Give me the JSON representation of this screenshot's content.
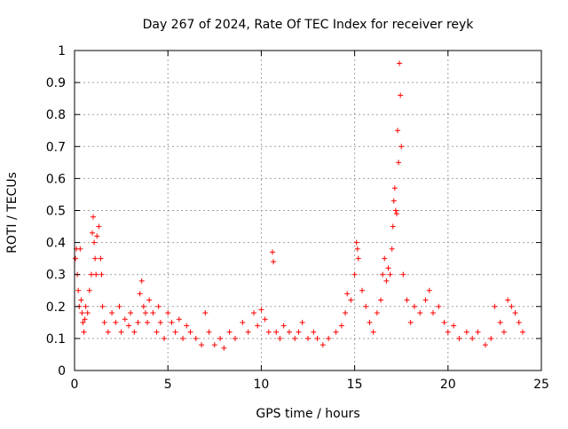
{
  "chart_data": {
    "type": "scatter",
    "title": "Day 267 of 2024, Rate Of TEC Index for receiver reyk",
    "xlabel": "GPS time / hours",
    "ylabel": "ROTI / TECUs",
    "xlim": [
      0,
      25
    ],
    "ylim": [
      0,
      1
    ],
    "xticks": [
      0,
      5,
      10,
      15,
      20,
      25
    ],
    "yticks": [
      0,
      0.1,
      0.2,
      0.3,
      0.4,
      0.5,
      0.6,
      0.7,
      0.8,
      0.9,
      1
    ],
    "grid": true,
    "legend": "none",
    "marker": "plus",
    "color": "#ff0000",
    "series": [
      {
        "x": [
          0.05,
          0.1,
          0.15,
          0.2,
          0.25,
          0.3,
          0.35,
          0.4,
          0.45,
          0.5,
          0.55,
          0.6,
          0.7,
          0.8,
          0.9,
          0.95,
          1.0,
          1.05,
          1.1,
          1.15,
          1.2,
          1.3,
          1.4,
          1.45,
          1.5,
          1.6,
          1.8,
          2.0,
          2.2,
          2.4,
          2.5,
          2.7,
          2.9,
          3.0,
          3.2,
          3.4,
          3.5,
          3.6,
          3.7,
          3.8,
          3.9,
          4.0,
          4.2,
          4.4,
          4.5,
          4.6,
          4.8,
          5.0,
          5.2,
          5.4,
          5.6,
          5.8,
          6.0,
          6.2,
          6.5,
          6.8,
          7.0,
          7.2,
          7.5,
          7.8,
          8.0,
          8.3,
          8.6,
          9.0,
          9.3,
          9.6,
          9.8,
          10.0,
          10.2,
          10.4,
          10.6,
          10.65,
          10.8,
          11.0,
          11.2,
          11.5,
          11.8,
          12.0,
          12.2,
          12.5,
          12.8,
          13.0,
          13.3,
          13.6,
          14.0,
          14.3,
          14.5,
          14.6,
          14.8,
          15.0,
          15.1,
          15.15,
          15.2,
          15.4,
          15.6,
          15.8,
          16.0,
          16.2,
          16.4,
          16.5,
          16.6,
          16.7,
          16.8,
          16.9,
          17.0,
          17.05,
          17.1,
          17.15,
          17.2,
          17.25,
          17.3,
          17.35,
          17.4,
          17.45,
          17.5,
          17.6,
          17.8,
          18.0,
          18.2,
          18.5,
          18.8,
          19.0,
          19.2,
          19.5,
          19.8,
          20.0,
          20.3,
          20.6,
          21.0,
          21.3,
          21.6,
          22.0,
          22.3,
          22.5,
          22.8,
          23.0,
          23.2,
          23.4,
          23.6,
          23.8,
          24.0
        ],
        "y": [
          0.35,
          0.38,
          0.3,
          0.25,
          0.2,
          0.38,
          0.22,
          0.18,
          0.15,
          0.12,
          0.16,
          0.2,
          0.18,
          0.25,
          0.3,
          0.43,
          0.48,
          0.4,
          0.35,
          0.3,
          0.42,
          0.45,
          0.35,
          0.3,
          0.2,
          0.15,
          0.12,
          0.18,
          0.15,
          0.2,
          0.12,
          0.16,
          0.14,
          0.18,
          0.12,
          0.15,
          0.24,
          0.28,
          0.2,
          0.18,
          0.15,
          0.22,
          0.18,
          0.12,
          0.2,
          0.15,
          0.1,
          0.18,
          0.15,
          0.12,
          0.16,
          0.1,
          0.14,
          0.12,
          0.1,
          0.08,
          0.18,
          0.12,
          0.08,
          0.1,
          0.07,
          0.12,
          0.1,
          0.15,
          0.12,
          0.18,
          0.14,
          0.19,
          0.16,
          0.12,
          0.37,
          0.34,
          0.12,
          0.1,
          0.14,
          0.12,
          0.1,
          0.12,
          0.15,
          0.1,
          0.12,
          0.1,
          0.08,
          0.1,
          0.12,
          0.14,
          0.18,
          0.24,
          0.22,
          0.3,
          0.4,
          0.38,
          0.35,
          0.25,
          0.2,
          0.15,
          0.12,
          0.18,
          0.22,
          0.3,
          0.35,
          0.28,
          0.32,
          0.3,
          0.38,
          0.45,
          0.53,
          0.57,
          0.5,
          0.49,
          0.75,
          0.65,
          0.96,
          0.86,
          0.7,
          0.3,
          0.22,
          0.15,
          0.2,
          0.18,
          0.22,
          0.25,
          0.18,
          0.2,
          0.15,
          0.12,
          0.14,
          0.1,
          0.12,
          0.1,
          0.12,
          0.08,
          0.1,
          0.2,
          0.15,
          0.12,
          0.22,
          0.2,
          0.18,
          0.15,
          0.12
        ]
      }
    ]
  }
}
